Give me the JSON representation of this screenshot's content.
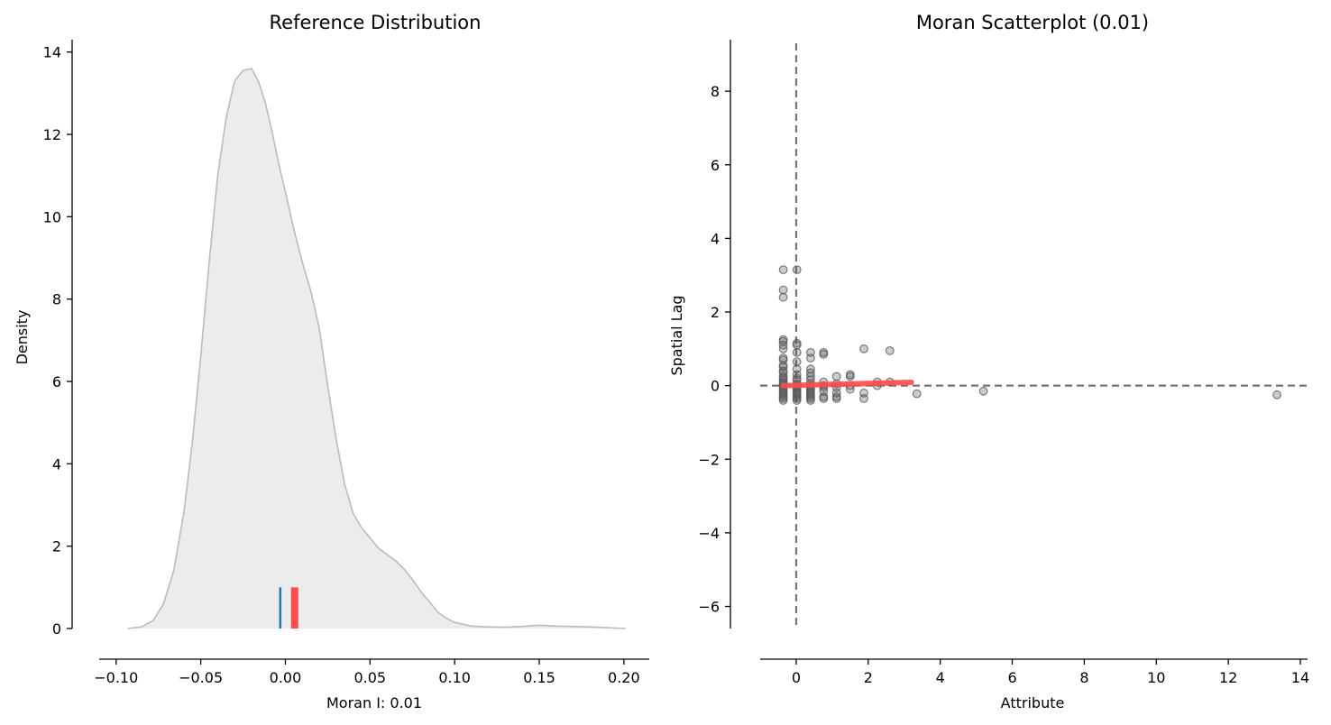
{
  "chart_data": [
    {
      "type": "area",
      "title": "Reference Distribution",
      "xlabel": "Moran I: 0.01",
      "ylabel": "Density",
      "xlim": [
        -0.11,
        0.215
      ],
      "ylim": [
        0,
        14.3
      ],
      "xticks": [
        -0.1,
        -0.05,
        0.0,
        0.05,
        0.1,
        0.15,
        0.2
      ],
      "xtick_labels": [
        "−0.10",
        "−0.05",
        "0.00",
        "0.05",
        "0.10",
        "0.15",
        "0.20"
      ],
      "yticks": [
        0,
        2,
        4,
        6,
        8,
        10,
        12,
        14
      ],
      "ytick_labels": [
        "0",
        "2",
        "4",
        "6",
        "8",
        "10",
        "12",
        "14"
      ],
      "density_curve": {
        "x": [
          -0.093,
          -0.085,
          -0.078,
          -0.072,
          -0.066,
          -0.06,
          -0.055,
          -0.05,
          -0.045,
          -0.04,
          -0.035,
          -0.03,
          -0.025,
          -0.02,
          -0.016,
          -0.012,
          -0.008,
          -0.004,
          0.0,
          0.005,
          0.01,
          0.015,
          0.02,
          0.025,
          0.03,
          0.035,
          0.04,
          0.045,
          0.05,
          0.055,
          0.06,
          0.065,
          0.07,
          0.075,
          0.08,
          0.085,
          0.09,
          0.095,
          0.1,
          0.11,
          0.12,
          0.13,
          0.14,
          0.15,
          0.16,
          0.17,
          0.18,
          0.19,
          0.201
        ],
        "y": [
          0.0,
          0.04,
          0.2,
          0.6,
          1.4,
          2.8,
          4.5,
          6.6,
          8.9,
          11.0,
          12.4,
          13.3,
          13.55,
          13.6,
          13.3,
          12.8,
          12.1,
          11.3,
          10.6,
          9.7,
          8.9,
          8.2,
          7.3,
          5.9,
          4.6,
          3.5,
          2.8,
          2.45,
          2.2,
          1.95,
          1.8,
          1.65,
          1.45,
          1.2,
          0.9,
          0.65,
          0.4,
          0.25,
          0.15,
          0.06,
          0.04,
          0.03,
          0.05,
          0.08,
          0.06,
          0.05,
          0.04,
          0.02,
          0.0
        ]
      },
      "reference_lines": [
        {
          "x": -0.003,
          "height": 1.0,
          "color": "#1f77b4",
          "width": 2.5
        },
        {
          "x": 0.0055,
          "height": 1.0,
          "color": "#ff4b4b",
          "width": 8
        }
      ],
      "fill_color": "#ececec",
      "line_color": "#bbbbbb",
      "grid": false
    },
    {
      "type": "scatter",
      "title": "Moran Scatterplot (0.01)",
      "xlabel": "Attribute",
      "ylabel": "Spatial Lag",
      "xlim": [
        -1.0,
        14.2
      ],
      "ylim": [
        -6.6,
        9.4
      ],
      "xticks": [
        0,
        2,
        4,
        6,
        8,
        10,
        12,
        14
      ],
      "xtick_labels": [
        "0",
        "2",
        "4",
        "6",
        "8",
        "10",
        "12",
        "14"
      ],
      "yticks": [
        -6,
        -4,
        -2,
        0,
        2,
        4,
        6,
        8
      ],
      "ytick_labels": [
        "−6",
        "−4",
        "−2",
        "0",
        "2",
        "4",
        "6",
        "8"
      ],
      "point_color": "#555555",
      "regression_line": {
        "x": [
          -0.36,
          3.2
        ],
        "y": [
          0.0,
          0.09
        ],
        "color": "#ff4b4b"
      },
      "crosshair": {
        "x": 0,
        "y": 0,
        "color": "#757575"
      },
      "points": [
        [
          -0.36,
          3.15
        ],
        [
          -0.36,
          2.6
        ],
        [
          -0.36,
          2.4
        ],
        [
          -0.36,
          1.25
        ],
        [
          -0.36,
          1.2
        ],
        [
          -0.36,
          1.1
        ],
        [
          -0.36,
          1.0
        ],
        [
          -0.36,
          0.75
        ],
        [
          -0.36,
          0.7
        ],
        [
          -0.36,
          0.55
        ],
        [
          -0.36,
          0.5
        ],
        [
          -0.36,
          0.4
        ],
        [
          -0.36,
          0.35
        ],
        [
          -0.36,
          0.25
        ],
        [
          -0.36,
          0.2
        ],
        [
          -0.36,
          0.15
        ],
        [
          -0.36,
          0.1
        ],
        [
          -0.36,
          0.05
        ],
        [
          -0.36,
          0.0
        ],
        [
          -0.36,
          -0.05
        ],
        [
          -0.36,
          -0.1
        ],
        [
          -0.36,
          -0.15
        ],
        [
          -0.36,
          -0.2
        ],
        [
          -0.36,
          -0.25
        ],
        [
          -0.36,
          -0.3
        ],
        [
          -0.36,
          -0.35
        ],
        [
          -0.36,
          -0.4
        ],
        [
          0.02,
          3.15
        ],
        [
          0.02,
          1.15
        ],
        [
          0.02,
          1.1
        ],
        [
          0.02,
          0.9
        ],
        [
          0.02,
          0.65
        ],
        [
          0.02,
          0.45
        ],
        [
          0.02,
          0.3
        ],
        [
          0.02,
          0.2
        ],
        [
          0.02,
          0.15
        ],
        [
          0.02,
          0.05
        ],
        [
          0.02,
          0.0
        ],
        [
          0.02,
          -0.05
        ],
        [
          0.02,
          -0.1
        ],
        [
          0.02,
          -0.15
        ],
        [
          0.02,
          -0.2
        ],
        [
          0.02,
          -0.25
        ],
        [
          0.02,
          -0.3
        ],
        [
          0.02,
          -0.35
        ],
        [
          0.02,
          -0.4
        ],
        [
          0.4,
          0.9
        ],
        [
          0.4,
          0.75
        ],
        [
          0.4,
          0.45
        ],
        [
          0.4,
          0.35
        ],
        [
          0.4,
          0.25
        ],
        [
          0.4,
          0.15
        ],
        [
          0.4,
          0.05
        ],
        [
          0.4,
          0.0
        ],
        [
          0.4,
          -0.05
        ],
        [
          0.4,
          -0.1
        ],
        [
          0.4,
          -0.15
        ],
        [
          0.4,
          -0.2
        ],
        [
          0.4,
          -0.25
        ],
        [
          0.4,
          -0.3
        ],
        [
          0.4,
          -0.35
        ],
        [
          0.4,
          -0.4
        ],
        [
          0.76,
          0.9
        ],
        [
          0.76,
          0.85
        ],
        [
          0.76,
          0.1
        ],
        [
          0.76,
          0.0
        ],
        [
          0.76,
          -0.05
        ],
        [
          0.76,
          -0.15
        ],
        [
          0.76,
          -0.3
        ],
        [
          0.76,
          -0.35
        ],
        [
          1.12,
          0.25
        ],
        [
          1.12,
          0.05
        ],
        [
          1.12,
          -0.05
        ],
        [
          1.12,
          -0.2
        ],
        [
          1.12,
          -0.3
        ],
        [
          1.12,
          -0.35
        ],
        [
          1.5,
          0.3
        ],
        [
          1.5,
          0.25
        ],
        [
          1.5,
          0.0
        ],
        [
          1.5,
          -0.1
        ],
        [
          1.88,
          1.0
        ],
        [
          1.88,
          -0.2
        ],
        [
          1.88,
          -0.35
        ],
        [
          2.25,
          0.1
        ],
        [
          2.25,
          0.0
        ],
        [
          2.6,
          0.95
        ],
        [
          2.6,
          0.1
        ],
        [
          3.35,
          -0.22
        ],
        [
          5.2,
          -0.15
        ],
        [
          13.35,
          -0.25
        ]
      ],
      "grid": false
    }
  ]
}
